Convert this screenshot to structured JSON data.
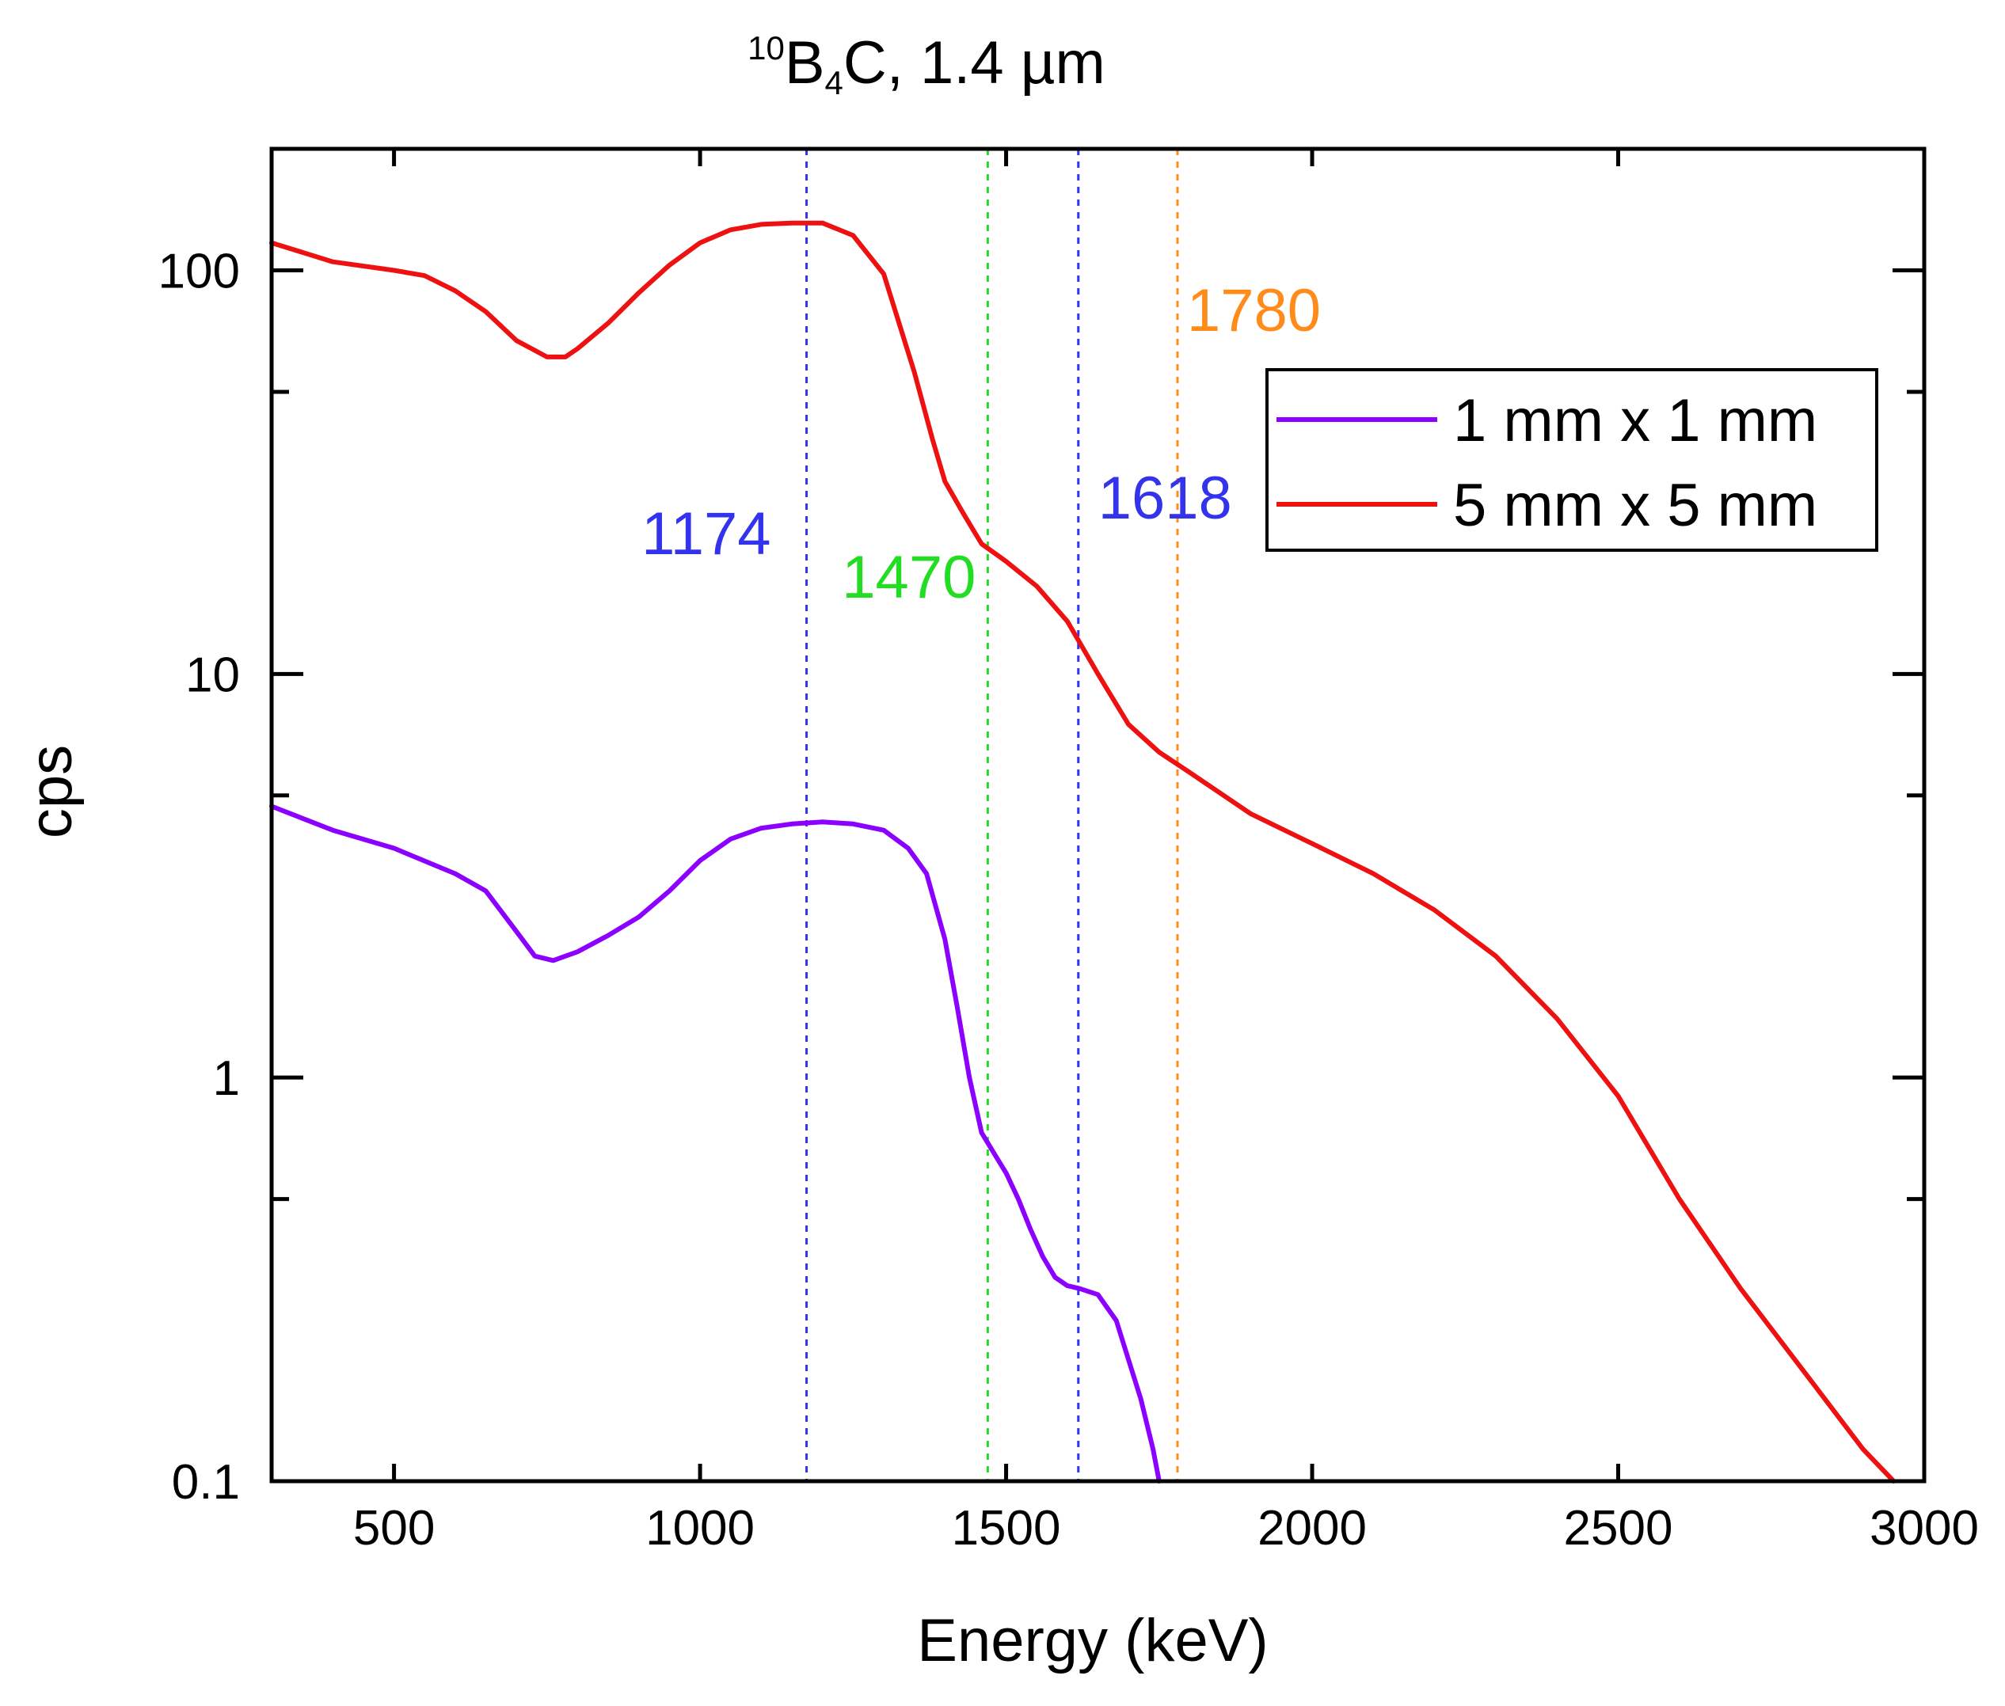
{
  "chart_data": {
    "type": "line",
    "title_prefix_super": "10",
    "title_b": "B",
    "title_sub": "4",
    "title_rest": "C, 1.4 µm",
    "xlabel": "Energy (keV)",
    "ylabel": "cps",
    "xlim": [
      300,
      3000
    ],
    "ylim": [
      0.1,
      200
    ],
    "yscale": "log",
    "xticks": [
      500,
      1000,
      1500,
      2000,
      2500,
      3000
    ],
    "xtick_labels": [
      "500",
      "1000",
      "1500",
      "2000",
      "2500",
      "3000"
    ],
    "yticks": [
      0.1,
      1,
      10,
      100
    ],
    "ytick_labels": [
      "0.1",
      "1",
      "10",
      "100"
    ],
    "yminor": [
      0.5,
      5,
      50
    ],
    "legend_position": "top-right",
    "series": [
      {
        "name": "1 mm x 1 mm",
        "color": "#8B00FF",
        "x": [
          300,
          400,
          500,
          600,
          650,
          700,
          730,
          760,
          800,
          850,
          900,
          950,
          1000,
          1050,
          1100,
          1150,
          1200,
          1250,
          1300,
          1340,
          1370,
          1400,
          1420,
          1440,
          1460,
          1480,
          1500,
          1520,
          1540,
          1560,
          1580,
          1600,
          1620,
          1650,
          1680,
          1700,
          1720,
          1740,
          1750
        ],
        "values": [
          4.7,
          4.1,
          3.7,
          3.2,
          2.9,
          2.3,
          2.0,
          1.95,
          2.05,
          2.25,
          2.5,
          2.9,
          3.45,
          3.9,
          4.15,
          4.25,
          4.3,
          4.25,
          4.1,
          3.7,
          3.2,
          2.2,
          1.5,
          1.0,
          0.73,
          0.65,
          0.58,
          0.5,
          0.42,
          0.36,
          0.32,
          0.305,
          0.3,
          0.29,
          0.25,
          0.2,
          0.16,
          0.12,
          0.1
        ]
      },
      {
        "name": "5 mm x 5 mm",
        "color": "#EE1111",
        "x": [
          300,
          400,
          500,
          550,
          600,
          650,
          700,
          750,
          780,
          800,
          850,
          900,
          950,
          1000,
          1050,
          1100,
          1150,
          1200,
          1250,
          1300,
          1350,
          1380,
          1400,
          1430,
          1460,
          1500,
          1550,
          1600,
          1650,
          1700,
          1750,
          1800,
          1900,
          2000,
          2100,
          2200,
          2300,
          2400,
          2500,
          2600,
          2700,
          2800,
          2900,
          2950
        ],
        "values": [
          117,
          105,
          100,
          97,
          89,
          79,
          67,
          61,
          61,
          64,
          74,
          88,
          103,
          117,
          126,
          130,
          131,
          131,
          122,
          98,
          56,
          38,
          30,
          25,
          21,
          19,
          16.5,
          13.5,
          10,
          7.5,
          6.4,
          5.7,
          4.5,
          3.8,
          3.2,
          2.6,
          2.0,
          1.4,
          0.9,
          0.5,
          0.3,
          0.19,
          0.12,
          0.1
        ]
      }
    ],
    "vlines": [
      {
        "x": 1174,
        "label": "1174",
        "color": "#3333EE"
      },
      {
        "x": 1470,
        "label": "1470",
        "color": "#22DD22"
      },
      {
        "x": 1618,
        "label": "1618",
        "color": "#3333EE"
      },
      {
        "x": 1780,
        "label": "1780",
        "color": "#FF8C1A"
      }
    ]
  }
}
